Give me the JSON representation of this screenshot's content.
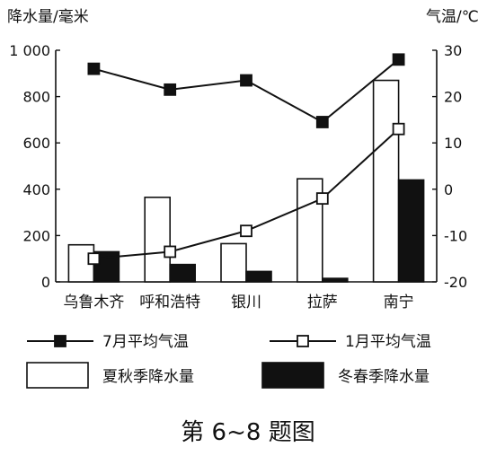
{
  "chart_data": {
    "type": "bar",
    "categories": [
      "乌鲁木齐",
      "呼和浩特",
      "银川",
      "拉萨",
      "南宁"
    ],
    "y_left": {
      "label": "降水量/毫米",
      "ylim": [
        0,
        1000
      ],
      "ticks": [
        "0",
        "200",
        "400",
        "600",
        "800",
        "1 000"
      ]
    },
    "y_right": {
      "label": "气温/℃",
      "ylim": [
        -20,
        30
      ],
      "ticks": [
        "-20",
        "-10",
        "0",
        "10",
        "20",
        "30"
      ]
    },
    "bar_series": [
      {
        "name": "夏秋季降水量",
        "color": "#ffffff",
        "values": [
          160,
          365,
          165,
          445,
          870
        ]
      },
      {
        "name": "冬春季降水量",
        "color": "#111111",
        "values": [
          130,
          75,
          45,
          15,
          440
        ]
      }
    ],
    "line_series": [
      {
        "name": "7月平均气温",
        "marker": "filled-square",
        "values": [
          26,
          21.5,
          23.5,
          14.5,
          28
        ]
      },
      {
        "name": "1月平均气温",
        "marker": "open-square",
        "values": [
          -15,
          -13.5,
          -9,
          -2,
          13
        ]
      }
    ],
    "legend_placement": "bottom",
    "grid": false
  },
  "caption": "第 6~8 题图"
}
